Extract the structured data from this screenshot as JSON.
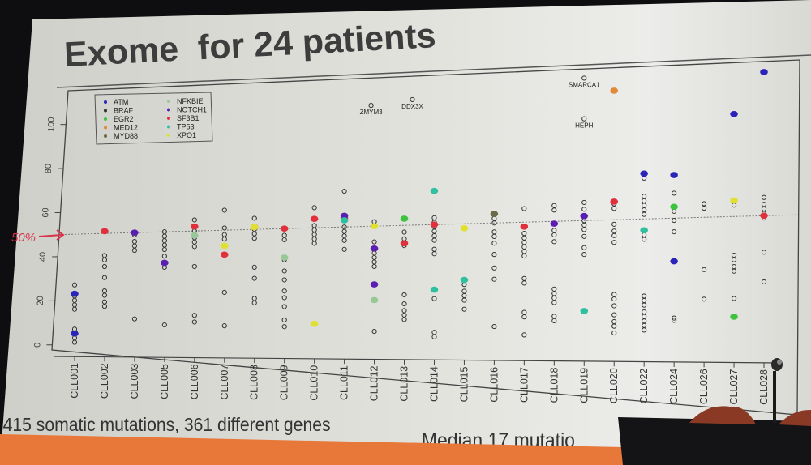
{
  "slide": {
    "title": "Exome  for 24 patients",
    "footer_left": "415 somatic mutations, 361 different genes",
    "footer_right": "Median 17 mutatio",
    "annotation_label": "50%",
    "colors": {
      "screen_bg": "#dcdcd6",
      "title_text": "#3d3d3d",
      "footer_band": "#e8783a",
      "annotation": "#d8334a",
      "room_dark": "#0e0e10",
      "podium_wood": "#8a3a24"
    }
  },
  "chart_data": {
    "type": "scatter",
    "title": "",
    "xlabel": "",
    "ylabel": "",
    "ylim": [
      -5,
      115
    ],
    "yticks": [
      0,
      20,
      40,
      60,
      80,
      100
    ],
    "reference_line": {
      "y": 50,
      "style": "dotted",
      "label": "50%"
    },
    "grid": false,
    "legend_position": "top-left",
    "categories": [
      "CLL001",
      "CLL002",
      "CLL003",
      "CLL005",
      "CLL006",
      "CLL007",
      "CLL008",
      "CLL009",
      "CLL010",
      "CLL011",
      "CLL012",
      "CLL013",
      "CLL014",
      "CLL015",
      "CLL016",
      "CLL017",
      "CLL018",
      "CLL019",
      "CLL020",
      "CLL022",
      "CLL024",
      "CLL026",
      "CLL027",
      "CLL028"
    ],
    "legend": [
      {
        "gene": "ATM",
        "color": "#2a25b8"
      },
      {
        "gene": "BRAF",
        "color": "#333333"
      },
      {
        "gene": "EGR2",
        "color": "#3fc23f"
      },
      {
        "gene": "MED12",
        "color": "#e08a3a"
      },
      {
        "gene": "MYD88",
        "color": "#6b6b4a"
      },
      {
        "gene": "NFKBIE",
        "color": "#98c898"
      },
      {
        "gene": "NOTCH1",
        "color": "#5a1fb0"
      },
      {
        "gene": "SF3B1",
        "color": "#e0303c"
      },
      {
        "gene": "TP53",
        "color": "#2fc0a0"
      },
      {
        "gene": "XPO1",
        "color": "#e0e030"
      }
    ],
    "labeled_points": [
      {
        "patient": "CLL012",
        "y": 104,
        "label": "ZMYM3"
      },
      {
        "patient": "CLL013",
        "y": 106,
        "label": "DDX3X"
      },
      {
        "patient": "CLL019",
        "y": 113,
        "label": "SMARCA1"
      },
      {
        "patient": "CLL019",
        "y": 95,
        "label": "HEPH"
      }
    ],
    "highlighted": [
      {
        "patient": "CLL001",
        "gene": "ATM",
        "y": 5
      },
      {
        "patient": "CLL001",
        "gene": "ATM",
        "y": 23
      },
      {
        "patient": "CLL002",
        "gene": "SF3B1",
        "y": 51
      },
      {
        "patient": "CLL003",
        "gene": "NOTCH1",
        "y": 50
      },
      {
        "patient": "CLL005",
        "gene": "NOTCH1",
        "y": 36
      },
      {
        "patient": "CLL006",
        "gene": "SF3B1",
        "y": 52
      },
      {
        "patient": "CLL006",
        "gene": "NFKBIE",
        "y": 48
      },
      {
        "patient": "CLL007",
        "gene": "XPO1",
        "y": 43
      },
      {
        "patient": "CLL007",
        "gene": "SF3B1",
        "y": 39
      },
      {
        "patient": "CLL008",
        "gene": "SF3B1",
        "y": 51
      },
      {
        "patient": "CLL008",
        "gene": "XPO1",
        "y": 51
      },
      {
        "patient": "CLL009",
        "gene": "SF3B1",
        "y": 50
      },
      {
        "patient": "CLL009",
        "gene": "NFKBIE",
        "y": 37
      },
      {
        "patient": "CLL010",
        "gene": "SF3B1",
        "y": 54
      },
      {
        "patient": "CLL010",
        "gene": "XPO1",
        "y": 7
      },
      {
        "patient": "CLL011",
        "gene": "SF3B1",
        "y": 54
      },
      {
        "patient": "CLL011",
        "gene": "NOTCH1",
        "y": 55
      },
      {
        "patient": "CLL011",
        "gene": "TP53",
        "y": 53
      },
      {
        "patient": "CLL012",
        "gene": "XPO1",
        "y": 50
      },
      {
        "patient": "CLL012",
        "gene": "NOTCH1",
        "y": 40
      },
      {
        "patient": "CLL012",
        "gene": "NOTCH1",
        "y": 24
      },
      {
        "patient": "CLL012",
        "gene": "NFKBIE",
        "y": 17
      },
      {
        "patient": "CLL013",
        "gene": "EGR2",
        "y": 53
      },
      {
        "patient": "CLL013",
        "gene": "SF3B1",
        "y": 42
      },
      {
        "patient": "CLL014",
        "gene": "TP53",
        "y": 65
      },
      {
        "patient": "CLL014",
        "gene": "SF3B1",
        "y": 50
      },
      {
        "patient": "CLL014",
        "gene": "TP53",
        "y": 21
      },
      {
        "patient": "CLL015",
        "gene": "XPO1",
        "y": 48
      },
      {
        "patient": "CLL015",
        "gene": "TP53",
        "y": 25
      },
      {
        "patient": "CLL016",
        "gene": "MYD88",
        "y": 54
      },
      {
        "patient": "CLL017",
        "gene": "SF3B1",
        "y": 48
      },
      {
        "patient": "CLL018",
        "gene": "NOTCH1",
        "y": 49
      },
      {
        "patient": "CLL019",
        "gene": "NOTCH1",
        "y": 52
      },
      {
        "patient": "CLL019",
        "gene": "TP53",
        "y": 10
      },
      {
        "patient": "CLL020",
        "gene": "SF3B1",
        "y": 58
      },
      {
        "patient": "CLL020",
        "gene": "MED12",
        "y": 107
      },
      {
        "patient": "CLL022",
        "gene": "ATM",
        "y": 70
      },
      {
        "patient": "CLL022",
        "gene": "TP53",
        "y": 45
      },
      {
        "patient": "CLL024",
        "gene": "ATM",
        "y": 69
      },
      {
        "patient": "CLL024",
        "gene": "EGR2",
        "y": 55
      },
      {
        "patient": "CLL024",
        "gene": "ATM",
        "y": 31
      },
      {
        "patient": "CLL027",
        "gene": "ATM",
        "y": 95
      },
      {
        "patient": "CLL027",
        "gene": "XPO1",
        "y": 57
      },
      {
        "patient": "CLL027",
        "gene": "EGR2",
        "y": 6
      },
      {
        "patient": "CLL028",
        "gene": "ATM",
        "y": 113
      },
      {
        "patient": "CLL028",
        "gene": "SF3B1",
        "y": 50
      }
    ],
    "other_mutations": {
      "CLL001": [
        1,
        3,
        7,
        16,
        18,
        20,
        22,
        27
      ],
      "CLL002": [
        17,
        19,
        22,
        24,
        30,
        35,
        38,
        40
      ],
      "CLL003": [
        11,
        42,
        44,
        46,
        49
      ],
      "CLL005": [
        8,
        34,
        39,
        42,
        44,
        46,
        48,
        50
      ],
      "CLL006": [
        9,
        12,
        34,
        43,
        45,
        47,
        50,
        55
      ],
      "CLL007": [
        7,
        22,
        46,
        48,
        51,
        59
      ],
      "CLL008": [
        17,
        19,
        28,
        33,
        46,
        48,
        50,
        55
      ],
      "CLL009": [
        6,
        9,
        15,
        19,
        22,
        27,
        31,
        36,
        45,
        47
      ],
      "CLL010": [
        43,
        45,
        47,
        49,
        51,
        59
      ],
      "CLL011": [
        40,
        44,
        46,
        48,
        50,
        66
      ],
      "CLL012": [
        3,
        32,
        34,
        36,
        38,
        43,
        52
      ],
      "CLL013": [
        8,
        10,
        12,
        15,
        19,
        41,
        44,
        47
      ],
      "CLL014": [
        0,
        2,
        17,
        37,
        39,
        43,
        45,
        47,
        49,
        51,
        53
      ],
      "CLL015": [
        12,
        16,
        18,
        20,
        23
      ],
      "CLL016": [
        4,
        25,
        30,
        36,
        41,
        44,
        46,
        50,
        52
      ],
      "CLL017": [
        0,
        8,
        10,
        23,
        25,
        35,
        37,
        39,
        41,
        43,
        45,
        56
      ],
      "CLL018": [
        6,
        8,
        14,
        16,
        18,
        20,
        41,
        44,
        46,
        55,
        57
      ],
      "CLL019": [
        35,
        38,
        43,
        46,
        48,
        50,
        55,
        58
      ],
      "CLL020": [
        0,
        3,
        5,
        8,
        12,
        15,
        17,
        40,
        43,
        45,
        48,
        55,
        57
      ],
      "CLL022": [
        1,
        3,
        5,
        7,
        9,
        12,
        14,
        16,
        41,
        43,
        52,
        54,
        56,
        58,
        60,
        68
      ],
      "CLL024": [
        5,
        6,
        44,
        49,
        53,
        55,
        61
      ],
      "CLL026": [
        14,
        27,
        54,
        56
      ],
      "CLL027": [
        14,
        26,
        28,
        31,
        33,
        55,
        57
      ],
      "CLL028": [
        21,
        49,
        51,
        53,
        55,
        34,
        58
      ]
    }
  }
}
